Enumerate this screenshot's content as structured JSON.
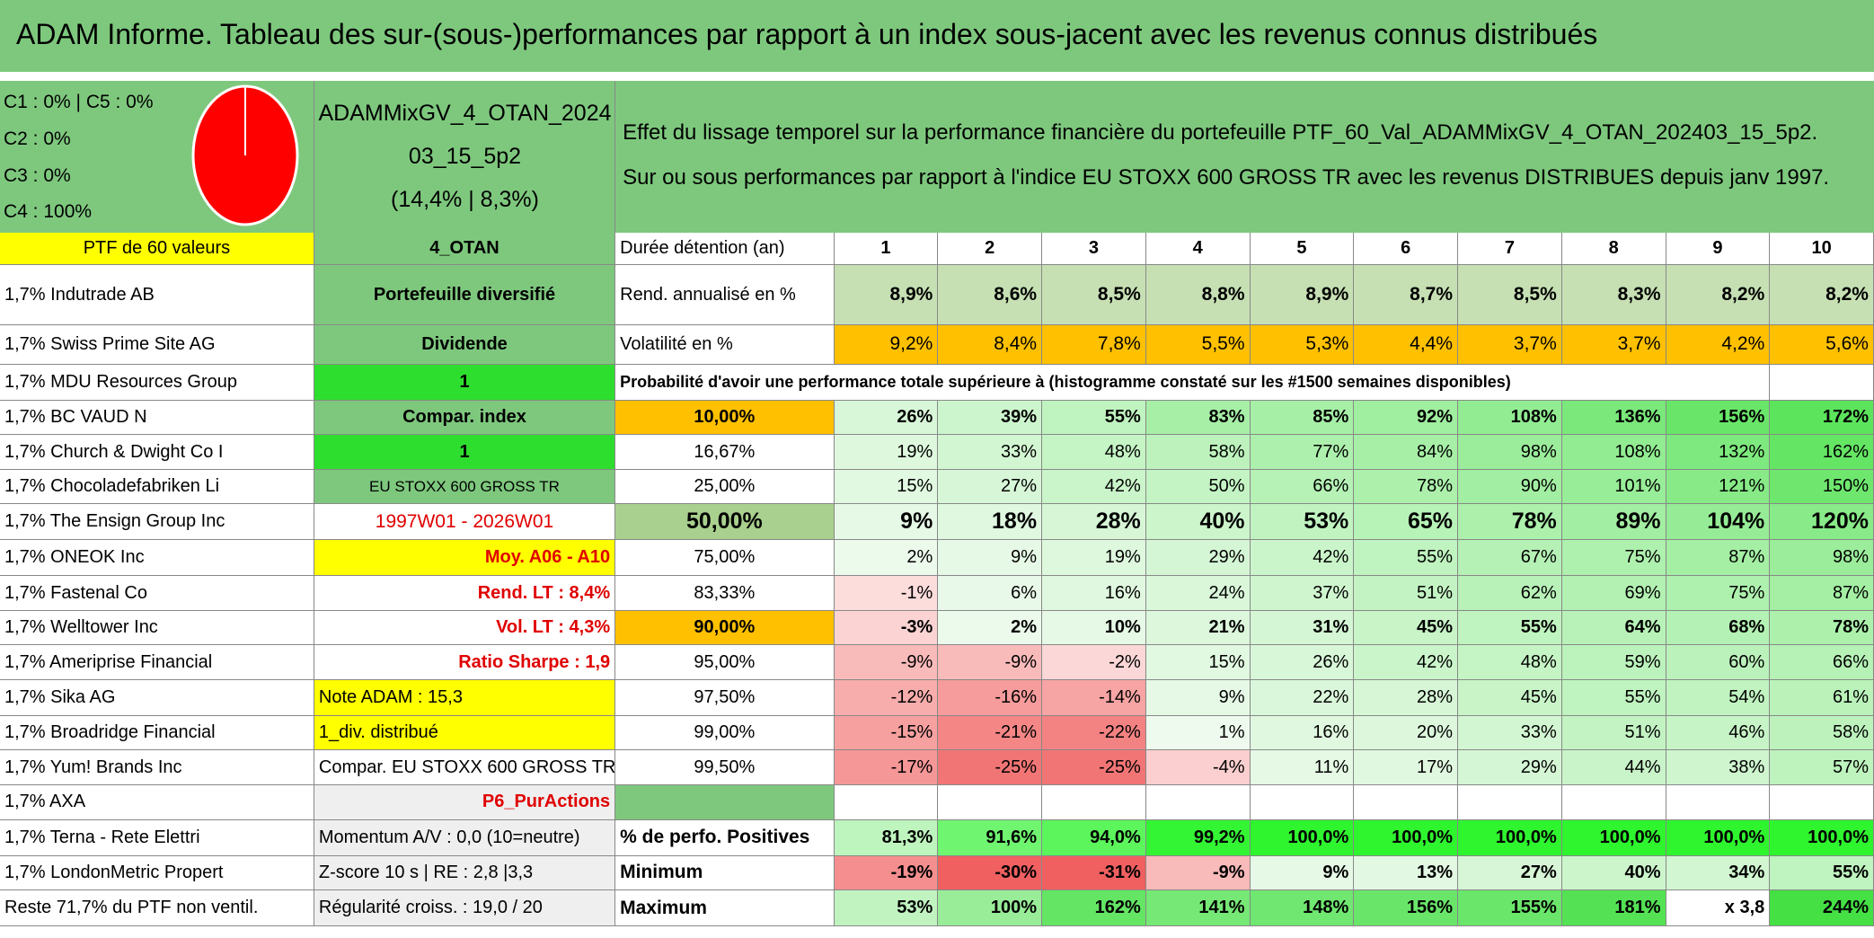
{
  "header": {
    "title": "ADAM Informe. Tableau des sur-(sous-)performances par rapport à un index sous-jacent avec les revenus connus distribués"
  },
  "summary": {
    "lines": [
      "C1 : 0% | C5 : 0%",
      "C2 : 0%",
      "C3 : 0%",
      "C4 : 100%"
    ]
  },
  "portfolio": {
    "lines": [
      "ADAMMixGV_4_OTAN_2024",
      "03_15_5p2",
      "(14,4% | 8,3%)"
    ]
  },
  "description": {
    "lines": [
      "Effet du lissage temporel sur la performance financière du portefeuille PTF_60_Val_ADAMMixGV_4_OTAN_202403_15_5p2.",
      "Sur ou sous performances par rapport à l'indice EU STOXX 600 GROSS TR avec les revenus DISTRIBUES depuis janv 1997."
    ]
  },
  "table": {
    "rows": [
      [
        "PTF de 60 valeurs",
        "4_OTAN",
        "Durée détention (an)",
        "1",
        "2",
        "3",
        "4",
        "5",
        "6",
        "7",
        "8",
        "9",
        "10"
      ],
      [
        "1,7% Indutrade AB",
        "Portefeuille diversifié",
        "Rend. annualisé en %",
        "8,9%",
        "8,6%",
        "8,5%",
        "8,8%",
        "8,9%",
        "8,7%",
        "8,5%",
        "8,3%",
        "8,2%",
        "8,2%"
      ],
      [
        "1,7% Swiss Prime Site AG",
        "Dividende",
        "Volatilité en %",
        "9,2%",
        "8,4%",
        "7,8%",
        "5,5%",
        "5,3%",
        "4,4%",
        "3,7%",
        "3,7%",
        "4,2%",
        "5,6%"
      ],
      [
        "1,7% MDU Resources Group",
        "1",
        "Probabilité d'avoir une performance totale supérieure à (histogramme constaté sur les #1500 semaines disponibles)",
        null,
        null,
        null,
        null,
        null,
        null,
        null,
        null,
        null,
        null
      ],
      [
        "1,7% BC VAUD N",
        "Compar. index",
        "10,00%",
        "26%",
        "39%",
        "55%",
        "83%",
        "85%",
        "92%",
        "108%",
        "136%",
        "156%",
        "172%"
      ],
      [
        "1,7% Church & Dwight Co I",
        "1",
        "16,67%",
        "19%",
        "33%",
        "48%",
        "58%",
        "77%",
        "84%",
        "98%",
        "108%",
        "132%",
        "162%"
      ],
      [
        "1,7% Chocoladefabriken Li",
        "EU STOXX 600 GROSS TR",
        "25,00%",
        "15%",
        "27%",
        "42%",
        "50%",
        "66%",
        "78%",
        "90%",
        "101%",
        "121%",
        "150%"
      ],
      [
        "1,7% The Ensign Group Inc",
        "1997W01 - 2026W01",
        "50,00%",
        "9%",
        "18%",
        "28%",
        "40%",
        "53%",
        "65%",
        "78%",
        "89%",
        "104%",
        "120%"
      ],
      [
        "1,7% ONEOK Inc",
        "Moy. A06 - A10",
        "75,00%",
        "2%",
        "9%",
        "19%",
        "29%",
        "42%",
        "55%",
        "67%",
        "75%",
        "87%",
        "98%"
      ],
      [
        "1,7% Fastenal Co",
        "Rend. LT : 8,4%",
        "83,33%",
        "-1%",
        "6%",
        "16%",
        "24%",
        "37%",
        "51%",
        "62%",
        "69%",
        "75%",
        "87%"
      ],
      [
        "1,7% Welltower Inc",
        "Vol. LT : 4,3%",
        "90,00%",
        "-3%",
        "2%",
        "10%",
        "21%",
        "31%",
        "45%",
        "55%",
        "64%",
        "68%",
        "78%"
      ],
      [
        "1,7% Ameriprise Financial",
        "Ratio Sharpe : 1,9",
        "95,00%",
        "-9%",
        "-9%",
        "-2%",
        "15%",
        "26%",
        "42%",
        "48%",
        "59%",
        "60%",
        "66%"
      ],
      [
        "1,7% Sika AG",
        "Note ADAM : 15,3",
        "97,50%",
        "-12%",
        "-16%",
        "-14%",
        "9%",
        "22%",
        "28%",
        "45%",
        "55%",
        "54%",
        "61%"
      ],
      [
        "1,7% Broadridge Financial",
        "1_div. distribué",
        "99,00%",
        "-15%",
        "-21%",
        "-22%",
        "1%",
        "16%",
        "20%",
        "33%",
        "51%",
        "46%",
        "58%"
      ],
      [
        "1,7% Yum! Brands Inc",
        "Compar. EU STOXX 600 GROSS TR",
        "99,50%",
        "-17%",
        "-25%",
        "-25%",
        "-4%",
        "11%",
        "17%",
        "29%",
        "44%",
        "38%",
        "57%"
      ],
      [
        "1,7% AXA",
        "P6_PurActions",
        null,
        null,
        null,
        null,
        null,
        null,
        null,
        null,
        null,
        null,
        null
      ],
      [
        "1,7% Terna - Rete Elettri",
        "Momentum A/V : 0,0 (10=neutre)",
        "% de perfo. Positives",
        "81,3%",
        "91,6%",
        "94,0%",
        "99,2%",
        "100,0%",
        "100,0%",
        "100,0%",
        "100,0%",
        "100,0%",
        "100,0%"
      ],
      [
        "1,7% LondonMetric Propert",
        "Z-score 10 s | RE : 2,8 |3,3",
        "Minimum",
        "-19%",
        "-30%",
        "-31%",
        "-9%",
        "9%",
        "13%",
        "27%",
        "40%",
        "34%",
        "55%"
      ],
      [
        "Reste 71,7% du PTF non ventil.",
        "Régularité croiss. : 19,0 / 20",
        "Maximum",
        "53%",
        "100%",
        "162%",
        "141%",
        "148%",
        "156%",
        "155%",
        "181%",
        "x 3,8",
        "244%"
      ]
    ]
  }
}
